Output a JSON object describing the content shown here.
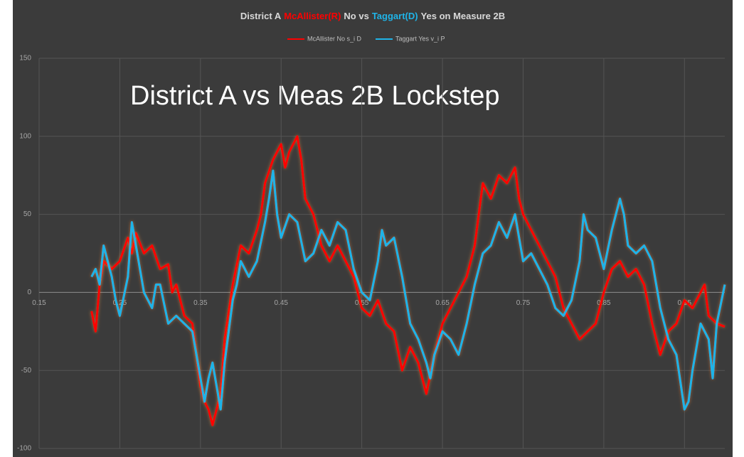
{
  "chart_data": {
    "type": "line",
    "title_parts": [
      {
        "text": "District A",
        "color": "#d9d9d9"
      },
      {
        "text": "McAllister(R)",
        "color": "#ff0000"
      },
      {
        "text": "No vs",
        "color": "#d9d9d9"
      },
      {
        "text": "Taggart(D)",
        "color": "#1fb4e8"
      },
      {
        "text": "Yes on Measure 2B",
        "color": "#d9d9d9"
      }
    ],
    "annotation": "District A vs Meas 2B Lockstep",
    "background": "#3b3b3b",
    "grid": true,
    "legend": "top",
    "xlim": [
      0.15,
      1.0
    ],
    "xticks": [
      0.15,
      0.25,
      0.35,
      0.45,
      0.55,
      0.65,
      0.75,
      0.85,
      0.95
    ],
    "ylim": [
      -100,
      150
    ],
    "yticks": [
      -100,
      -50,
      0,
      50,
      100,
      150
    ],
    "series": [
      {
        "name": "McAllister No s_i D",
        "color": "#ff0000",
        "x": [
          0.215,
          0.22,
          0.225,
          0.23,
          0.24,
          0.25,
          0.26,
          0.265,
          0.27,
          0.28,
          0.29,
          0.3,
          0.31,
          0.315,
          0.32,
          0.33,
          0.34,
          0.345,
          0.35,
          0.355,
          0.36,
          0.365,
          0.37,
          0.375,
          0.38,
          0.39,
          0.4,
          0.41,
          0.42,
          0.425,
          0.43,
          0.44,
          0.45,
          0.455,
          0.46,
          0.47,
          0.475,
          0.48,
          0.49,
          0.5,
          0.51,
          0.52,
          0.53,
          0.54,
          0.55,
          0.56,
          0.57,
          0.58,
          0.59,
          0.6,
          0.61,
          0.62,
          0.63,
          0.64,
          0.65,
          0.66,
          0.67,
          0.68,
          0.69,
          0.7,
          0.71,
          0.72,
          0.73,
          0.74,
          0.745,
          0.75,
          0.76,
          0.77,
          0.78,
          0.79,
          0.8,
          0.81,
          0.82,
          0.83,
          0.84,
          0.85,
          0.86,
          0.87,
          0.88,
          0.89,
          0.9,
          0.91,
          0.92,
          0.93,
          0.94,
          0.95,
          0.96,
          0.97,
          0.975,
          0.98,
          0.99,
          1.0
        ],
        "values": [
          -12,
          -25,
          5,
          20,
          15,
          20,
          35,
          25,
          38,
          25,
          30,
          15,
          18,
          0,
          5,
          -15,
          -20,
          -40,
          -60,
          -70,
          -75,
          -85,
          -75,
          -65,
          -30,
          5,
          30,
          25,
          40,
          50,
          70,
          85,
          95,
          80,
          90,
          100,
          85,
          60,
          50,
          30,
          20,
          30,
          20,
          10,
          -10,
          -15,
          -5,
          -20,
          -25,
          -50,
          -35,
          -45,
          -65,
          -40,
          -20,
          -10,
          0,
          10,
          30,
          70,
          60,
          75,
          70,
          80,
          60,
          50,
          40,
          30,
          20,
          10,
          -10,
          -20,
          -30,
          -25,
          -20,
          0,
          15,
          20,
          10,
          15,
          5,
          -20,
          -40,
          -25,
          -20,
          -5,
          -10,
          0,
          5,
          -15,
          -20,
          -22
        ]
      },
      {
        "name": "Taggart Yes v_i P",
        "color": "#1fb4e8",
        "x": [
          0.215,
          0.22,
          0.225,
          0.23,
          0.24,
          0.245,
          0.25,
          0.26,
          0.265,
          0.27,
          0.28,
          0.29,
          0.295,
          0.3,
          0.31,
          0.32,
          0.33,
          0.34,
          0.345,
          0.35,
          0.355,
          0.36,
          0.365,
          0.37,
          0.375,
          0.38,
          0.39,
          0.395,
          0.4,
          0.41,
          0.42,
          0.43,
          0.435,
          0.44,
          0.445,
          0.45,
          0.46,
          0.47,
          0.48,
          0.49,
          0.5,
          0.51,
          0.52,
          0.53,
          0.54,
          0.55,
          0.56,
          0.57,
          0.575,
          0.58,
          0.59,
          0.6,
          0.61,
          0.62,
          0.63,
          0.635,
          0.64,
          0.65,
          0.66,
          0.67,
          0.68,
          0.69,
          0.7,
          0.71,
          0.72,
          0.73,
          0.74,
          0.75,
          0.76,
          0.77,
          0.78,
          0.79,
          0.8,
          0.81,
          0.82,
          0.825,
          0.83,
          0.84,
          0.85,
          0.86,
          0.87,
          0.875,
          0.88,
          0.89,
          0.9,
          0.91,
          0.92,
          0.93,
          0.94,
          0.95,
          0.955,
          0.96,
          0.97,
          0.98,
          0.985,
          0.99,
          1.0
        ],
        "values": [
          10,
          15,
          5,
          30,
          10,
          -5,
          -15,
          10,
          45,
          30,
          0,
          -10,
          5,
          5,
          -20,
          -15,
          -20,
          -25,
          -40,
          -55,
          -70,
          -55,
          -45,
          -60,
          -75,
          -45,
          -5,
          5,
          20,
          10,
          20,
          45,
          60,
          78,
          50,
          35,
          50,
          45,
          20,
          25,
          40,
          30,
          45,
          40,
          15,
          0,
          -5,
          20,
          40,
          30,
          35,
          10,
          -20,
          -30,
          -45,
          -55,
          -40,
          -25,
          -30,
          -40,
          -20,
          5,
          25,
          30,
          45,
          35,
          50,
          20,
          25,
          15,
          5,
          -10,
          -15,
          -5,
          20,
          50,
          40,
          35,
          15,
          40,
          60,
          50,
          30,
          25,
          30,
          20,
          -10,
          -30,
          -40,
          -75,
          -70,
          -50,
          -20,
          -30,
          -55,
          -20,
          5
        ]
      }
    ]
  }
}
